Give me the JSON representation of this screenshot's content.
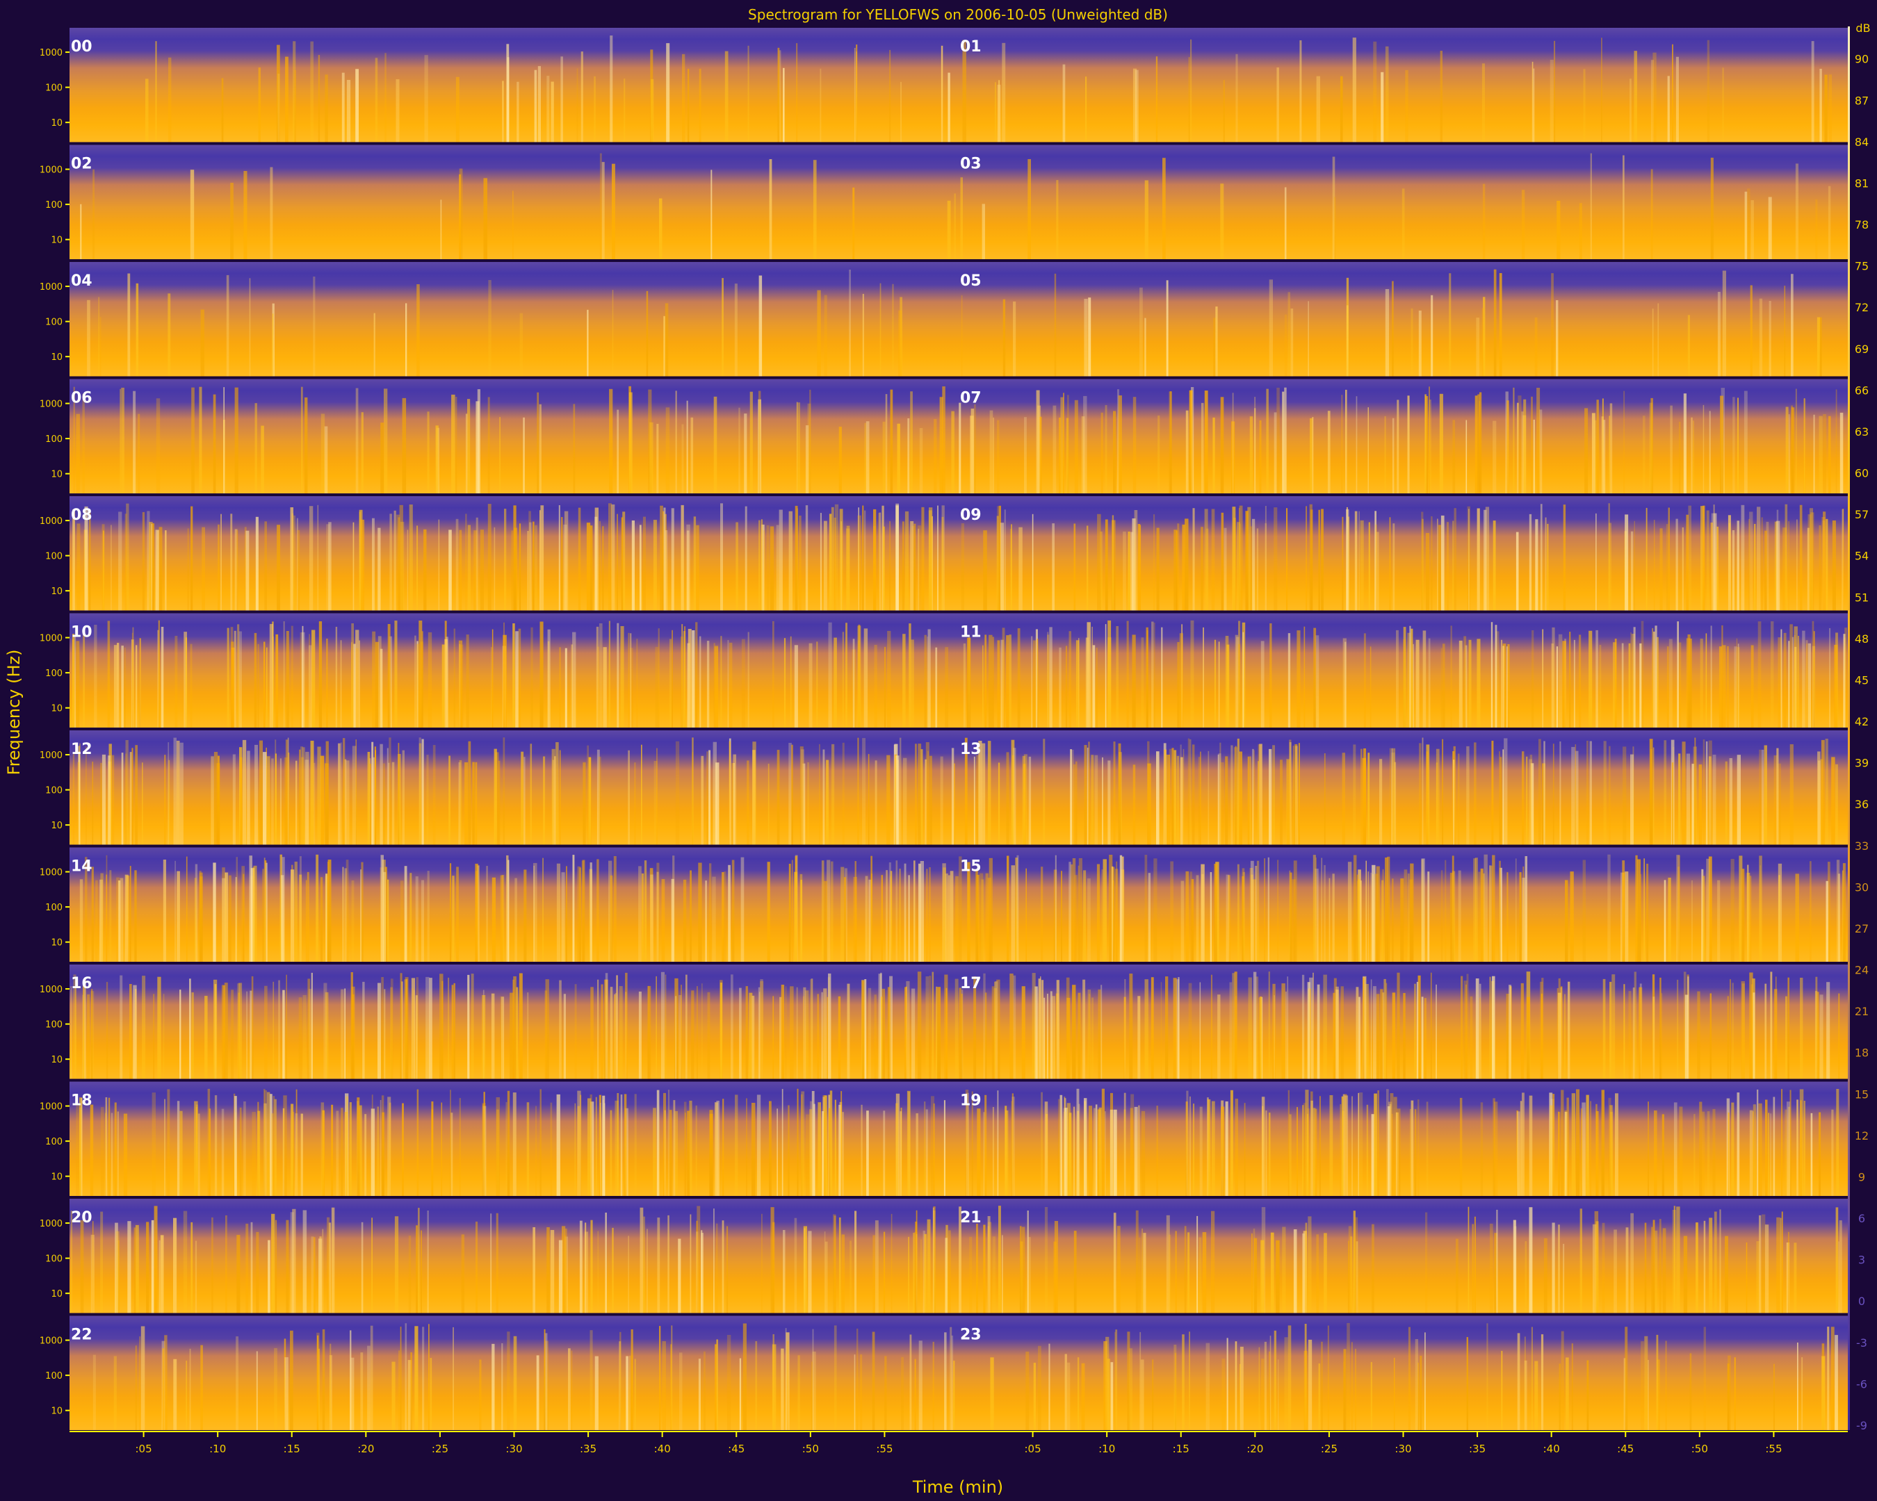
{
  "chart_data": {
    "type": "heatmap",
    "title": "Spectrogram for YELLOFWS on 2006-10-05 (Unweighted dB)",
    "xlabel": "Time (min)",
    "ylabel": "Frequency (Hz)",
    "colorbar_unit": "dB",
    "grid": false,
    "legend_position": "right",
    "colors": {
      "background": "#1a0838",
      "low": "#4a38a8",
      "high": "#ffb000",
      "peak": "#fff0c0",
      "text": "#f5d000",
      "tick_line": "#ffff00"
    },
    "x_tick_labels": [
      ":05",
      ":10",
      ":15",
      ":20",
      ":25",
      ":30",
      ":35",
      ":40",
      ":45",
      ":50",
      ":55"
    ],
    "y_tick_labels": [
      "1000",
      "100",
      "10"
    ],
    "hour_labels": [
      "00",
      "01",
      "02",
      "03",
      "04",
      "05",
      "06",
      "07",
      "08",
      "09",
      "10",
      "11",
      "12",
      "13",
      "14",
      "15",
      "16",
      "17",
      "18",
      "19",
      "20",
      "21",
      "22",
      "23"
    ],
    "colorbar_ticks": [
      90,
      87,
      84,
      81,
      78,
      75,
      72,
      69,
      66,
      63,
      60,
      57,
      54,
      51,
      48,
      45,
      42,
      39,
      36,
      33,
      30,
      27,
      24,
      21,
      18,
      15,
      12,
      9,
      6,
      3,
      0,
      -3,
      -6,
      -9
    ],
    "colorbar_range": [
      -9,
      92
    ],
    "hour_activity": [
      0.25,
      0.2,
      0.1,
      0.12,
      0.15,
      0.2,
      0.35,
      0.55,
      0.75,
      0.7,
      0.72,
      0.75,
      0.78,
      0.76,
      0.78,
      0.78,
      0.8,
      0.78,
      0.8,
      0.8,
      0.55,
      0.5,
      0.45,
      0.42
    ]
  }
}
